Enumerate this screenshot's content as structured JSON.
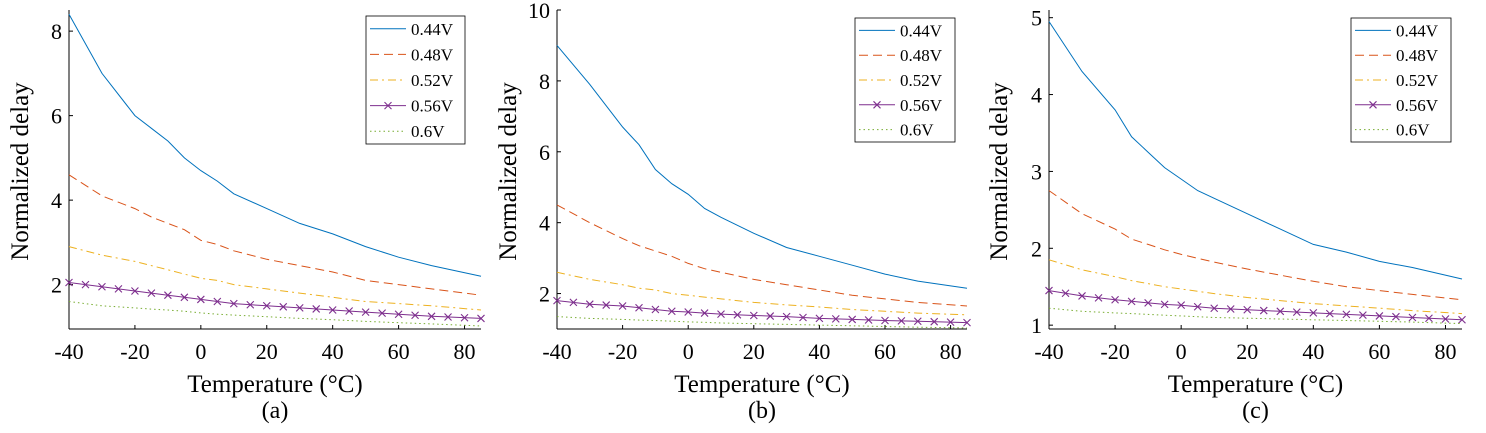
{
  "colors": {
    "s044": "#0072BD",
    "s048": "#D95319",
    "s052": "#EDB120",
    "s056": "#7E2F8E",
    "s060": "#77AC30"
  },
  "chart_data": [
    {
      "type": "line",
      "caption": "(a)",
      "xlabel": "Temperature (°C)",
      "ylabel": "Normalized delay",
      "xlim": [
        -40,
        85
      ],
      "ylim": [
        0.95,
        8.5
      ],
      "xticks": [
        -40,
        -20,
        0,
        20,
        40,
        60,
        80
      ],
      "yticks": [
        2,
        4,
        6,
        8
      ],
      "legend_position": "top-right",
      "x": [
        -40,
        -30,
        -20,
        -15,
        -10,
        -5,
        0,
        5,
        10,
        20,
        30,
        40,
        50,
        60,
        70,
        85
      ],
      "series": [
        {
          "name": "0.44V",
          "style": "solid",
          "values": [
            8.4,
            7.0,
            6.0,
            5.7,
            5.4,
            5.0,
            4.7,
            4.45,
            4.15,
            3.8,
            3.45,
            3.2,
            2.9,
            2.65,
            2.45,
            2.2
          ]
        },
        {
          "name": "0.48V",
          "style": "dash",
          "values": [
            4.6,
            4.1,
            3.8,
            3.6,
            3.45,
            3.3,
            3.05,
            2.95,
            2.8,
            2.6,
            2.45,
            2.3,
            2.1,
            2.0,
            1.9,
            1.75
          ]
        },
        {
          "name": "0.52V",
          "style": "dashdot",
          "values": [
            2.9,
            2.7,
            2.55,
            2.45,
            2.35,
            2.25,
            2.15,
            2.1,
            2.0,
            1.9,
            1.8,
            1.7,
            1.6,
            1.55,
            1.5,
            1.4
          ]
        },
        {
          "name": "0.56V",
          "style": "x-marker",
          "values": [
            2.05,
            1.95,
            1.85,
            1.8,
            1.75,
            1.7,
            1.65,
            1.6,
            1.55,
            1.5,
            1.45,
            1.4,
            1.35,
            1.3,
            1.25,
            1.2
          ]
        },
        {
          "name": "0.6V",
          "style": "dotted",
          "values": [
            1.6,
            1.5,
            1.45,
            1.42,
            1.4,
            1.37,
            1.33,
            1.3,
            1.28,
            1.24,
            1.2,
            1.17,
            1.13,
            1.1,
            1.07,
            1.02
          ]
        }
      ]
    },
    {
      "type": "line",
      "caption": "(b)",
      "xlabel": "Temperature (°C)",
      "ylabel": "Normalized delay",
      "xlim": [
        -40,
        85
      ],
      "ylim": [
        1.0,
        10
      ],
      "xticks": [
        -40,
        -20,
        0,
        20,
        40,
        60,
        80
      ],
      "yticks": [
        2,
        4,
        6,
        8,
        10
      ],
      "legend_position": "top-right",
      "x": [
        -40,
        -30,
        -20,
        -15,
        -10,
        -5,
        0,
        5,
        10,
        20,
        30,
        40,
        50,
        60,
        70,
        85
      ],
      "series": [
        {
          "name": "0.44V",
          "style": "solid",
          "values": [
            9.0,
            7.9,
            6.7,
            6.2,
            5.5,
            5.1,
            4.8,
            4.4,
            4.15,
            3.7,
            3.3,
            3.05,
            2.8,
            2.55,
            2.35,
            2.15
          ]
        },
        {
          "name": "0.48V",
          "style": "dash",
          "values": [
            4.5,
            4.0,
            3.55,
            3.35,
            3.2,
            3.05,
            2.85,
            2.7,
            2.6,
            2.4,
            2.25,
            2.1,
            1.95,
            1.85,
            1.75,
            1.65
          ]
        },
        {
          "name": "0.52V",
          "style": "dashdot",
          "values": [
            2.6,
            2.4,
            2.25,
            2.15,
            2.1,
            2.0,
            1.95,
            1.9,
            1.85,
            1.75,
            1.68,
            1.62,
            1.55,
            1.5,
            1.45,
            1.4
          ]
        },
        {
          "name": "0.56V",
          "style": "x-marker",
          "values": [
            1.8,
            1.7,
            1.65,
            1.6,
            1.55,
            1.5,
            1.48,
            1.45,
            1.42,
            1.38,
            1.35,
            1.3,
            1.27,
            1.24,
            1.22,
            1.18
          ]
        },
        {
          "name": "0.6V",
          "style": "dotted",
          "values": [
            1.35,
            1.3,
            1.27,
            1.25,
            1.24,
            1.22,
            1.2,
            1.19,
            1.17,
            1.15,
            1.13,
            1.11,
            1.09,
            1.07,
            1.05,
            1.03
          ]
        }
      ]
    },
    {
      "type": "line",
      "caption": "(c)",
      "xlabel": "Temperature (°C)",
      "ylabel": "Normalized delay",
      "xlim": [
        -40,
        85
      ],
      "ylim": [
        0.95,
        5.1
      ],
      "xticks": [
        -40,
        -20,
        0,
        20,
        40,
        60,
        80
      ],
      "yticks": [
        1,
        2,
        3,
        4,
        5
      ],
      "legend_position": "top-right",
      "x": [
        -40,
        -30,
        -20,
        -15,
        -10,
        -5,
        0,
        5,
        10,
        20,
        30,
        40,
        50,
        60,
        70,
        85
      ],
      "series": [
        {
          "name": "0.44V",
          "style": "solid",
          "values": [
            4.95,
            4.3,
            3.8,
            3.45,
            3.25,
            3.05,
            2.9,
            2.75,
            2.65,
            2.45,
            2.25,
            2.05,
            1.95,
            1.83,
            1.75,
            1.6
          ]
        },
        {
          "name": "0.48V",
          "style": "dash",
          "values": [
            2.75,
            2.45,
            2.25,
            2.12,
            2.05,
            1.98,
            1.92,
            1.87,
            1.82,
            1.73,
            1.65,
            1.57,
            1.5,
            1.45,
            1.4,
            1.33
          ]
        },
        {
          "name": "0.52V",
          "style": "dashdot",
          "values": [
            1.85,
            1.72,
            1.63,
            1.58,
            1.54,
            1.5,
            1.47,
            1.44,
            1.41,
            1.36,
            1.32,
            1.28,
            1.25,
            1.22,
            1.19,
            1.15
          ]
        },
        {
          "name": "0.56V",
          "style": "x-marker",
          "values": [
            1.45,
            1.38,
            1.33,
            1.31,
            1.29,
            1.27,
            1.26,
            1.24,
            1.22,
            1.2,
            1.18,
            1.16,
            1.14,
            1.12,
            1.1,
            1.07
          ]
        },
        {
          "name": "0.6V",
          "style": "dotted",
          "values": [
            1.22,
            1.18,
            1.16,
            1.15,
            1.14,
            1.13,
            1.12,
            1.11,
            1.1,
            1.09,
            1.08,
            1.07,
            1.06,
            1.05,
            1.04,
            1.02
          ]
        }
      ]
    }
  ]
}
